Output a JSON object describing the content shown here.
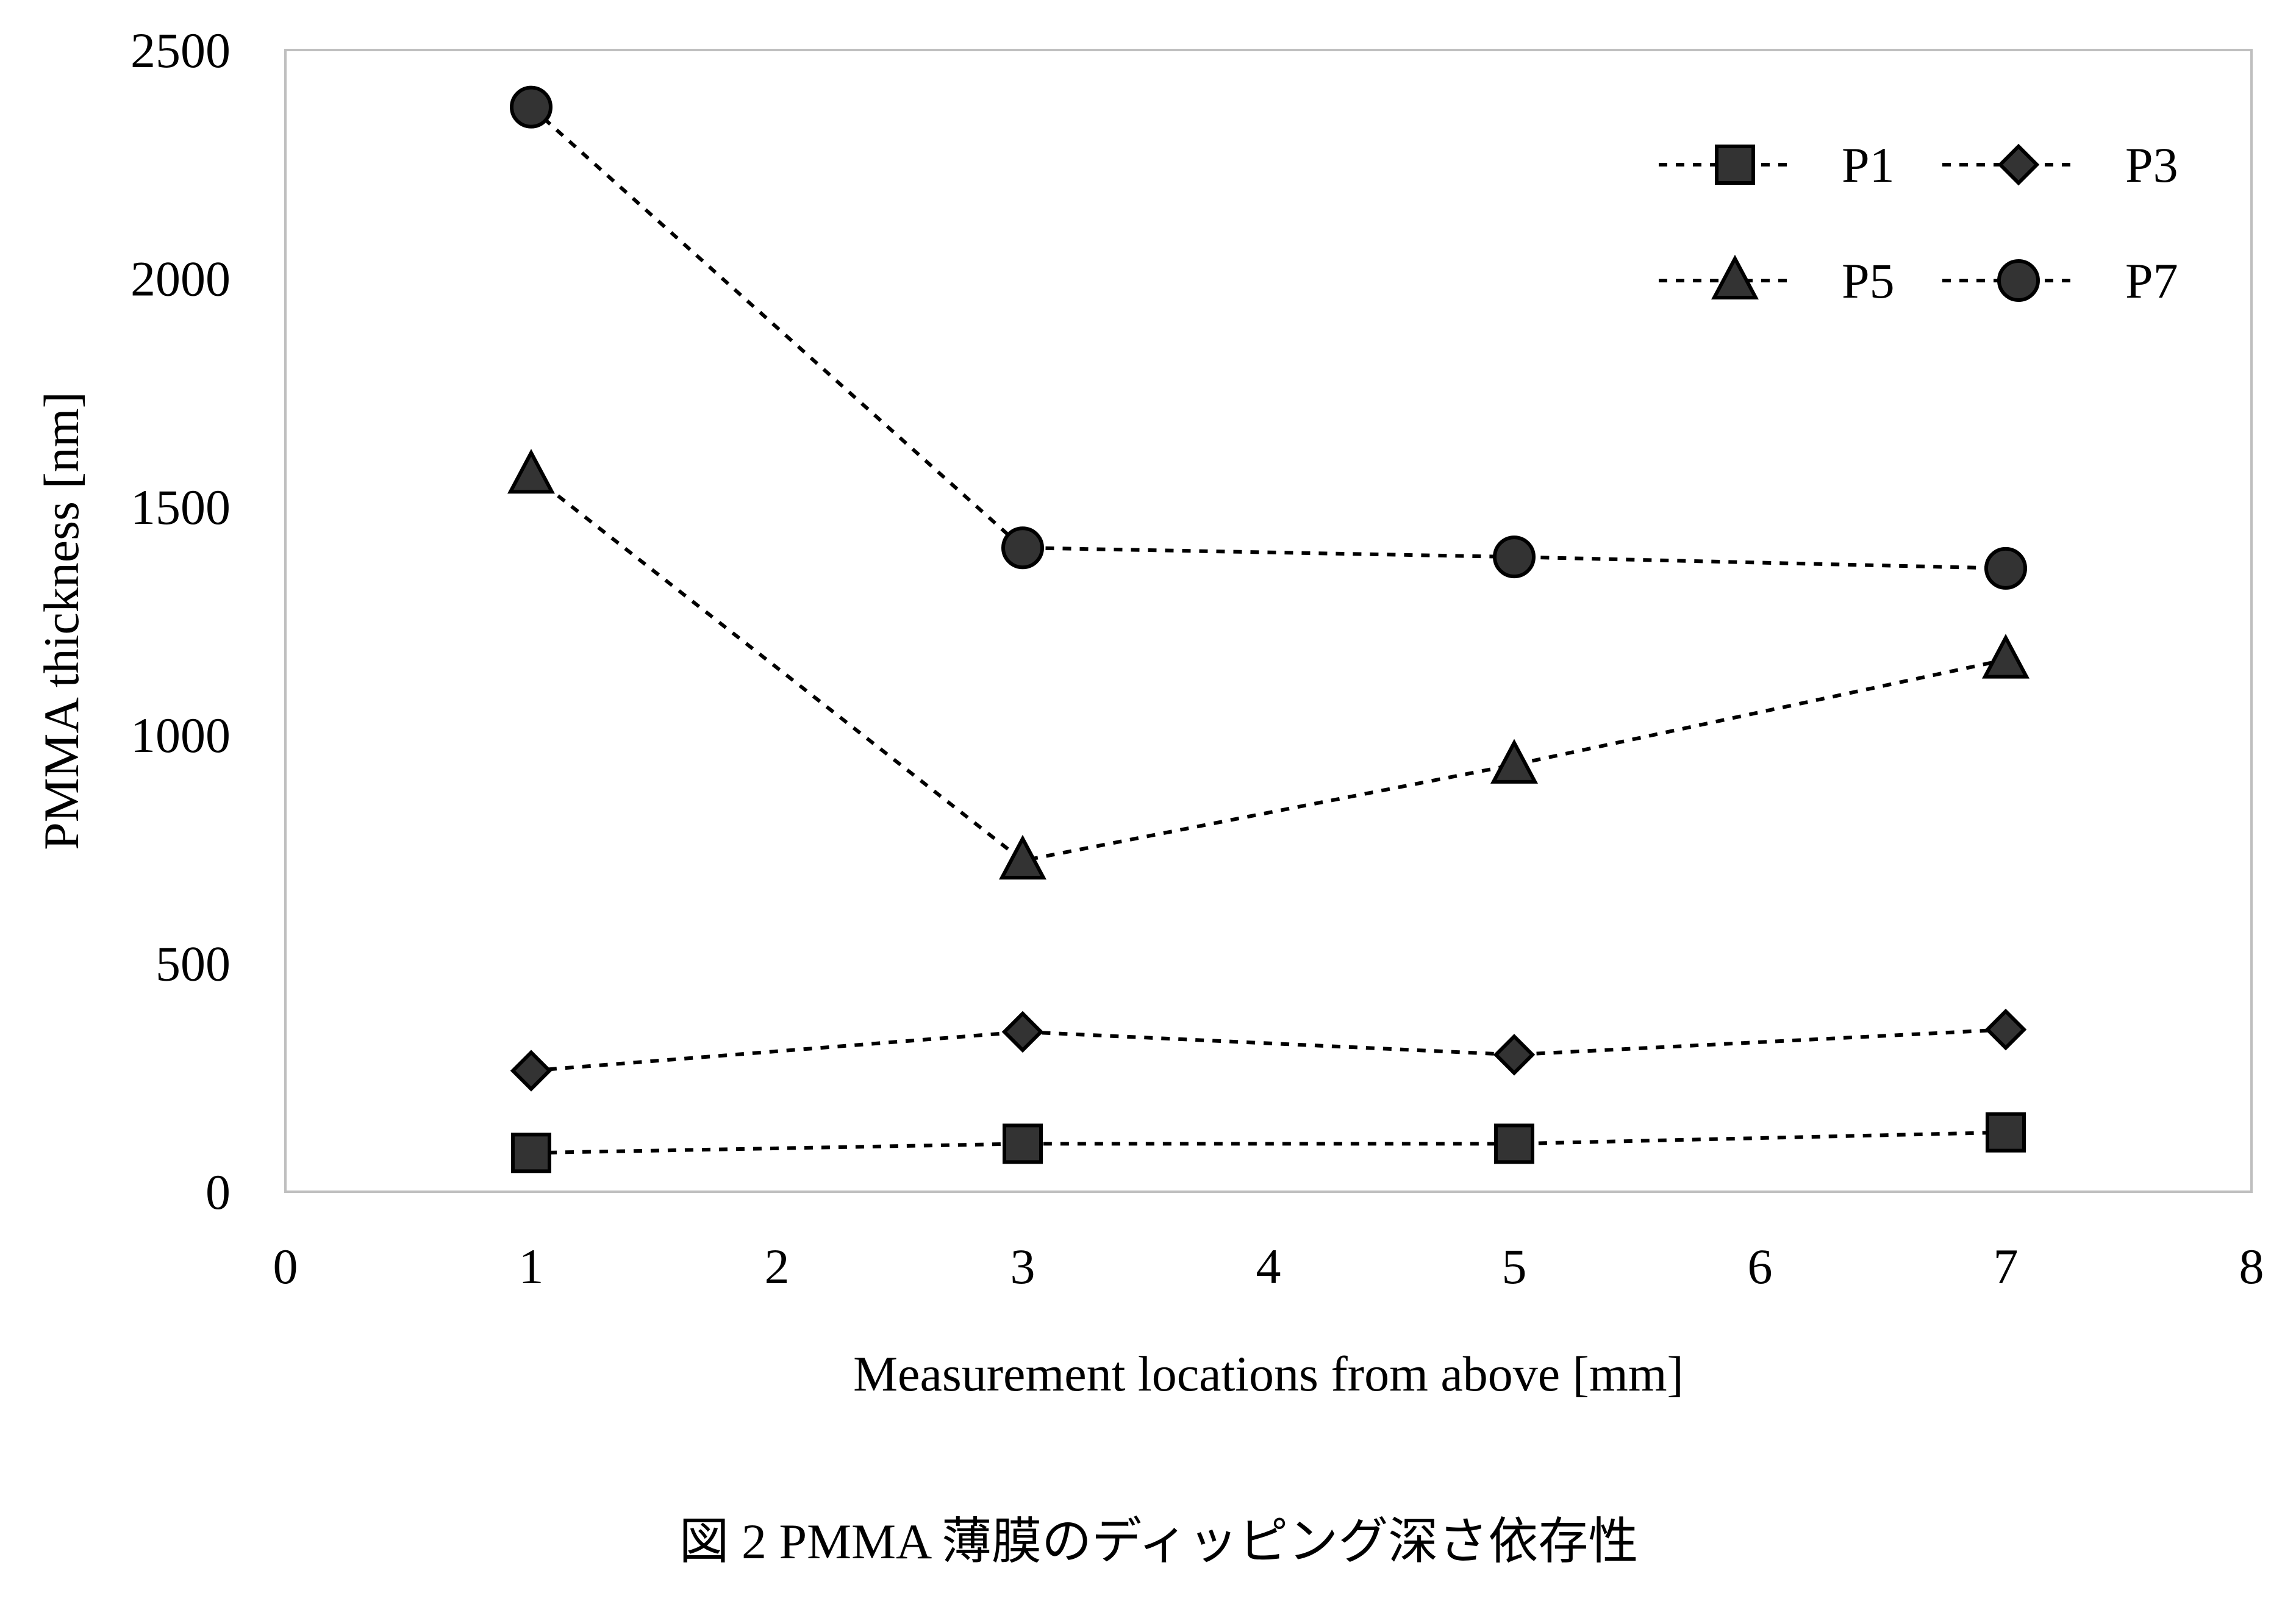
{
  "chart_data": {
    "type": "line",
    "title": "",
    "xlabel": "Measurement locations from above [mm]",
    "ylabel": "PMMA thickness [nm]",
    "xlim": [
      0,
      8
    ],
    "ylim": [
      0,
      2500
    ],
    "x_ticks": [
      0,
      1,
      2,
      3,
      4,
      5,
      6,
      7,
      8
    ],
    "y_ticks": [
      0,
      500,
      1000,
      1500,
      2000,
      2500
    ],
    "grid": false,
    "legend_position": "top-right",
    "line_style": "dotted",
    "marker_fill": "#333333",
    "marker_stroke": "#000000",
    "x": [
      1,
      3,
      5,
      7
    ],
    "series": [
      {
        "name": "P1",
        "marker": "square",
        "values": [
          85,
          105,
          105,
          130
        ]
      },
      {
        "name": "P3",
        "marker": "diamond",
        "values": [
          265,
          350,
          300,
          355
        ]
      },
      {
        "name": "P5",
        "marker": "triangle",
        "values": [
          1570,
          725,
          935,
          1165
        ]
      },
      {
        "name": "P7",
        "marker": "circle",
        "values": [
          2375,
          1410,
          1390,
          1365
        ]
      }
    ]
  },
  "caption": "図 2 PMMA 薄膜のディッピング深さ依存性"
}
